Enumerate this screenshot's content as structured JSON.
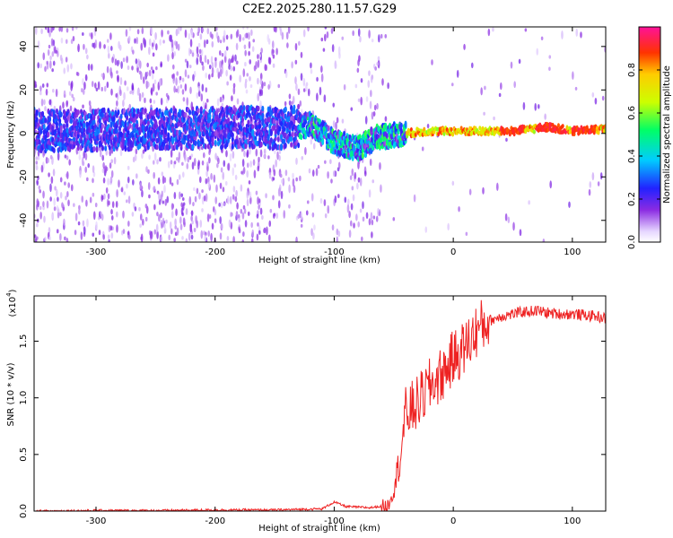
{
  "chart_data": [
    {
      "type": "heatmap",
      "title": "C2E2.2025.280.11.57.G29",
      "xlabel": "Height of straight line (km)",
      "ylabel": "Frequency (Hz)",
      "xlim": [
        -352,
        128
      ],
      "ylim": [
        -50,
        49
      ],
      "xticks": [
        -300,
        -200,
        -100,
        0,
        100
      ],
      "yticks": [
        -40,
        -20,
        0,
        20,
        40
      ],
      "colorbar": {
        "label": "Normalized spectral amplitude",
        "range": [
          0.0,
          1.0
        ],
        "ticks": [
          0.0,
          0.2,
          0.4,
          0.6,
          0.8
        ],
        "tick_labels": [
          "0.0",
          "0.2",
          "0.4",
          "0.6",
          "0.8"
        ]
      },
      "ridge_frequency_hz": [
        {
          "x": -350,
          "y": 1
        },
        {
          "x": -250,
          "y": 2
        },
        {
          "x": -170,
          "y": 3
        },
        {
          "x": -150,
          "y": 2
        },
        {
          "x": -120,
          "y": 4
        },
        {
          "x": -100,
          "y": -4
        },
        {
          "x": -80,
          "y": -7
        },
        {
          "x": -65,
          "y": -2
        },
        {
          "x": -40,
          "y": 0
        },
        {
          "x": -20,
          "y": 1
        },
        {
          "x": 0,
          "y": 1
        },
        {
          "x": 50,
          "y": 1
        },
        {
          "x": 80,
          "y": 3
        },
        {
          "x": 100,
          "y": 1
        },
        {
          "x": 125,
          "y": 2
        }
      ]
    },
    {
      "type": "line",
      "title": "",
      "xlabel": "Height of straight line (km)",
      "ylabel": "SNR (10 * v/v)",
      "y_scale_label": "(x10",
      "y_scale_exponent": "4",
      "xlim": [
        -352,
        128
      ],
      "ylim": [
        0,
        1.9
      ],
      "xticks": [
        -300,
        -200,
        -100,
        0,
        100
      ],
      "yticks": [
        "0.0",
        "0.5",
        "1.0",
        "1.5"
      ],
      "color": "#ee2222",
      "series": [
        {
          "name": "SNR",
          "x": [
            -350,
            -300,
            -250,
            -200,
            -150,
            -110,
            -100,
            -90,
            -70,
            -55,
            -50,
            -45,
            -40,
            -30,
            -20,
            -10,
            0,
            10,
            20,
            30,
            40,
            50,
            60,
            70,
            80,
            90,
            100,
            110,
            120,
            128
          ],
          "y": [
            0.0,
            0.005,
            0.005,
            0.01,
            0.01,
            0.02,
            0.08,
            0.04,
            0.03,
            0.05,
            0.2,
            0.45,
            0.85,
            0.95,
            1.1,
            1.2,
            1.35,
            1.45,
            1.6,
            1.68,
            1.72,
            1.74,
            1.76,
            1.77,
            1.75,
            1.74,
            1.74,
            1.73,
            1.72,
            1.7
          ]
        }
      ]
    }
  ]
}
